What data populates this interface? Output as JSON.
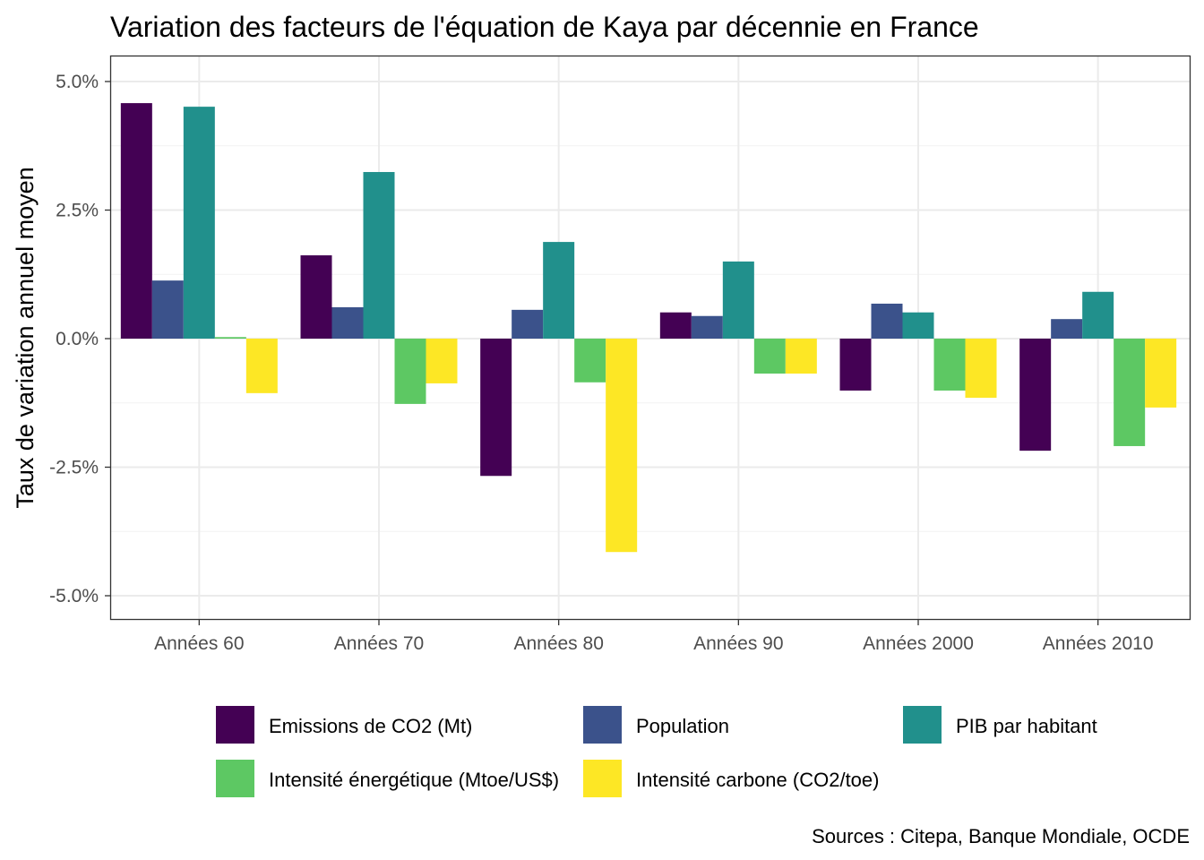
{
  "chart_data": {
    "type": "bar",
    "title": "Variation des facteurs de l'équation de Kaya par décennie en France",
    "xlabel": "",
    "ylabel": "Taux de variation annuel moyen",
    "caption": "Sources : Citepa, Banque Mondiale, OCDE",
    "ylim": [
      -5.5,
      5.5
    ],
    "yticks": [
      5.0,
      2.5,
      0.0,
      -2.5,
      -5.0
    ],
    "ytick_labels": [
      "5.0%",
      "2.5%",
      "0.0%",
      "-2.5%",
      "-5.0%"
    ],
    "grid": true,
    "legend_position": "bottom",
    "categories": [
      "Années 60",
      "Années 70",
      "Années 80",
      "Années 90",
      "Années 2000",
      "Années 2010"
    ],
    "series": [
      {
        "name": "Emissions de CO2 (Mt)",
        "color": "#440154",
        "values": [
          4.58,
          1.62,
          -2.67,
          0.51,
          -1.01,
          -2.18
        ]
      },
      {
        "name": "Population",
        "color": "#3B528B",
        "values": [
          1.13,
          0.61,
          0.56,
          0.44,
          0.68,
          0.38
        ]
      },
      {
        "name": "PIB par habitant",
        "color": "#21908C",
        "values": [
          4.51,
          3.24,
          1.88,
          1.5,
          0.51,
          0.91
        ]
      },
      {
        "name": "Intensité énergétique (Mtoe/US$)",
        "color": "#5DC863",
        "values": [
          0.03,
          -1.27,
          -0.85,
          -0.68,
          -1.01,
          -2.09
        ]
      },
      {
        "name": "Intensité carbone (CO2/toe)",
        "color": "#FDE725",
        "values": [
          -1.06,
          -0.87,
          -4.15,
          -0.68,
          -1.15,
          -1.34
        ]
      }
    ]
  }
}
